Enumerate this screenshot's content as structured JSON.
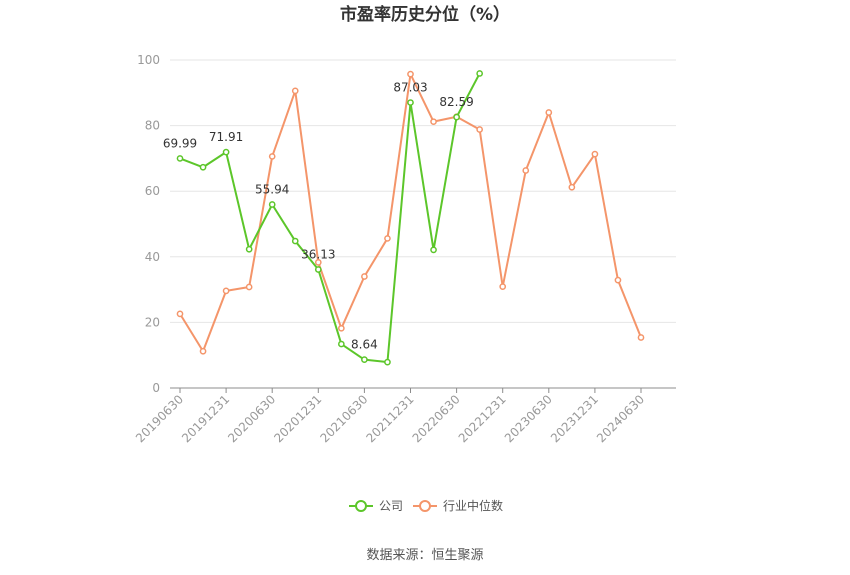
{
  "chart_data": {
    "type": "line",
    "title": "市盈率历史分位（%）",
    "source": "数据来源：恒生聚源",
    "xlabel": "",
    "ylabel": "",
    "ylim": [
      0,
      100
    ],
    "yticks": [
      0,
      20,
      40,
      60,
      80,
      100
    ],
    "grid": true,
    "legend_position": "bottom",
    "categories": [
      "20190630",
      "20190930",
      "20191231",
      "20200331",
      "20200630",
      "20200930",
      "20201231",
      "20210331",
      "20210630",
      "20210930",
      "20211231",
      "20220331",
      "20220630",
      "20220930",
      "20221231",
      "20230331",
      "20230630",
      "20230930",
      "20231231",
      "20240331",
      "20240630"
    ],
    "x_tick_labels": [
      "20190630",
      "20191231",
      "20200630",
      "20201231",
      "20210630",
      "20211231",
      "20220630",
      "20221231",
      "20230630",
      "20231231",
      "20240630"
    ],
    "series": [
      {
        "name": "公司",
        "color": "#5cc62a",
        "values": [
          69.99,
          67.3,
          71.91,
          42.3,
          55.94,
          44.8,
          36.13,
          13.4,
          8.64,
          7.9,
          87.03,
          42.1,
          82.59,
          95.9,
          null,
          null,
          null,
          null,
          null,
          null,
          null
        ],
        "data_labels": {
          "0": "69.99",
          "2": "71.91",
          "4": "55.94",
          "6": "36.13",
          "8": "8.64",
          "10": "87.03",
          "12": "82.59"
        }
      },
      {
        "name": "行业中位数",
        "color": "#f4956a",
        "values": [
          22.6,
          11.2,
          29.6,
          30.8,
          70.6,
          90.6,
          38.3,
          18.2,
          34.0,
          45.6,
          95.7,
          81.2,
          82.7,
          78.8,
          30.9,
          66.3,
          84.0,
          61.2,
          71.3,
          32.9,
          15.4
        ]
      }
    ]
  }
}
